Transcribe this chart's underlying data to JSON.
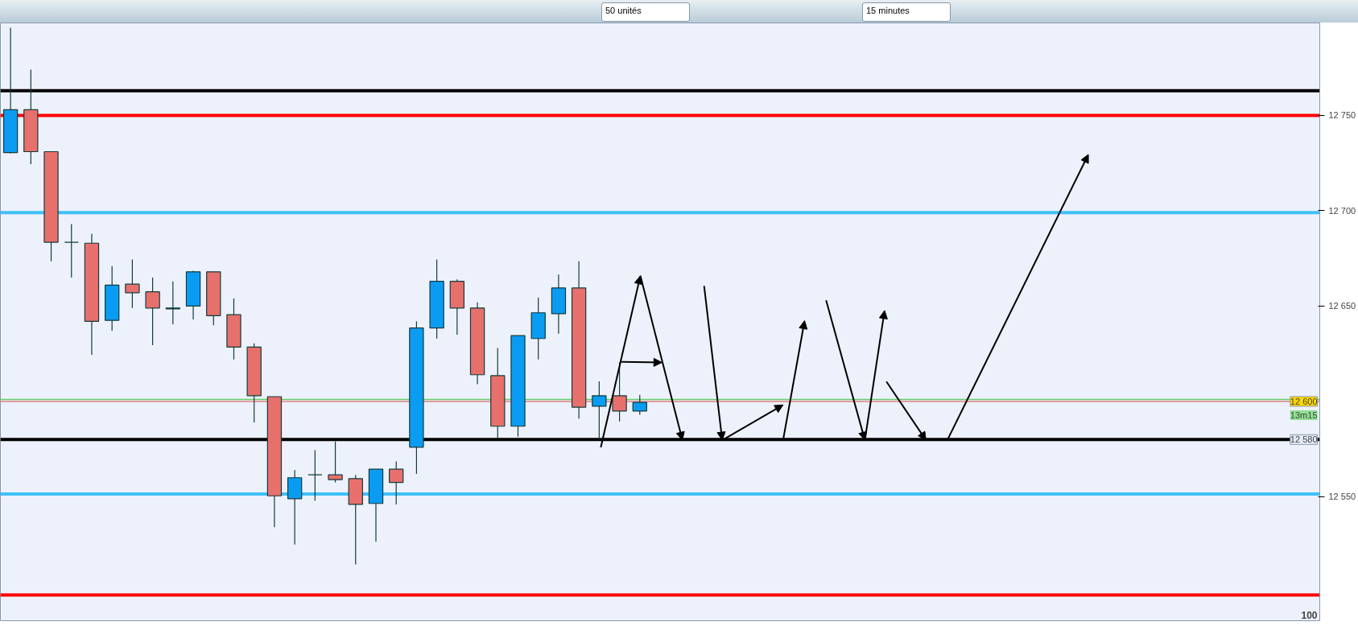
{
  "chart_data": {
    "type": "candlestick",
    "categories": [
      null,
      null,
      null,
      null,
      null,
      null,
      null,
      null,
      null,
      null,
      null,
      null,
      null,
      null,
      null,
      null,
      null,
      null,
      null,
      null,
      null,
      null,
      null,
      null,
      null,
      null,
      null,
      null,
      null,
      null,
      null,
      null,
      null,
      null,
      null,
      null,
      null,
      null,
      null,
      null,
      null,
      null,
      null,
      null,
      null,
      null,
      null,
      null,
      null,
      null,
      null,
      null,
      null,
      null,
      null,
      null,
      null,
      null,
      null,
      null,
      null,
      null,
      null,
      null,
      null
    ],
    "ohlc": [
      [
        12730.5,
        12796,
        12730,
        12753
      ],
      [
        12753,
        12774,
        12724.5,
        12731
      ],
      [
        12731,
        12731,
        12673.5,
        12683.5
      ],
      [
        12683.5,
        12693,
        12665,
        12683.5
      ],
      [
        12683,
        12688,
        12624.5,
        12642
      ],
      [
        12642.5,
        12671,
        12637,
        12661
      ],
      [
        12661.5,
        12674.5,
        12649,
        12657
      ],
      [
        12657.5,
        12665,
        12629.5,
        12649
      ],
      [
        12648.5,
        12663,
        12640.5,
        12649
      ],
      [
        12650,
        12668.5,
        12643,
        12668
      ],
      [
        12668,
        12668,
        12640,
        12645
      ],
      [
        12645.5,
        12654,
        12622,
        12628.5
      ],
      [
        12628.5,
        12630.5,
        12589,
        12603
      ],
      [
        12602.5,
        12602.5,
        12534,
        12550.5
      ],
      [
        12549,
        12564,
        12525,
        12560
      ],
      [
        12561.5,
        12574.5,
        12548,
        12561.5
      ],
      [
        12561.5,
        12579,
        12557.5,
        12559
      ],
      [
        12559.5,
        12561.5,
        12514.5,
        12546
      ],
      [
        12546.5,
        12564.5,
        12526.5,
        12564.5
      ],
      [
        12564.5,
        12568.5,
        12546,
        12557.5
      ],
      [
        12576,
        12642,
        12562,
        12638.5
      ],
      [
        12638.5,
        12674.5,
        12633,
        12663
      ],
      [
        12663,
        12664,
        12635,
        12649
      ],
      [
        12649,
        12652,
        12609,
        12614
      ],
      [
        12613.5,
        12628,
        12580.5,
        12587
      ],
      [
        12587,
        12634.5,
        12581.5,
        12634.5
      ],
      [
        12633,
        12654.5,
        12622,
        12646.5
      ],
      [
        12646,
        12666.5,
        12635.5,
        12659.5
      ],
      [
        12659.5,
        12673.5,
        12591,
        12597
      ],
      [
        12597.5,
        12610.5,
        12580,
        12603
      ],
      [
        12603,
        12620.5,
        12589.5,
        12595
      ],
      [
        12595,
        12603.5,
        12593,
        12599.5
      ],
      null,
      null,
      null,
      null,
      null,
      null,
      null,
      null,
      null,
      null,
      null,
      null,
      null,
      null,
      null,
      null,
      null,
      null,
      null,
      null,
      null,
      null,
      null,
      null,
      null,
      null,
      null,
      null,
      null,
      null,
      null,
      null,
      null
    ],
    "colors": [
      "#0a9cf2",
      "#e8706c",
      "#e8706c",
      "#123c3c",
      "#e8706c",
      "#0a9cf2",
      "#e8706c",
      "#e8706c",
      "#0a9cf2",
      "#0a9cf2",
      "#e8706c",
      "#e8706c",
      "#e8706c",
      "#e8706c",
      "#0a9cf2",
      "#123c3c",
      "#e8706c",
      "#e8706c",
      "#0a9cf2",
      "#e8706c",
      "#0a9cf2",
      "#0a9cf2",
      "#e8706c",
      "#e8706c",
      "#e8706c",
      "#0a9cf2",
      "#0a9cf2",
      "#0a9cf2",
      "#e8706c",
      "#0a9cf2",
      "#e8706c",
      "#0a9cf2",
      null,
      null,
      null,
      null,
      null,
      null,
      null,
      null,
      null,
      null,
      null,
      null,
      null,
      null,
      null,
      null,
      null,
      null,
      null,
      null,
      null,
      null,
      null,
      null,
      null,
      null,
      null,
      null,
      null,
      null,
      null,
      null,
      null
    ],
    "ylim": [
      12485,
      12798.5
    ],
    "yticks": [
      {
        "value": 12550,
        "label": "12 550"
      },
      {
        "value": 12650,
        "label": "12 650"
      },
      {
        "value": 12700,
        "label": "12 700"
      },
      {
        "value": 12750,
        "label": "12 750"
      }
    ],
    "tick_labels": "y",
    "grid": false,
    "ref_lines": [
      {
        "axis": "y",
        "value": 12763,
        "color": "#000000"
      },
      {
        "axis": "y",
        "value": 12750,
        "color": "#ff0000"
      },
      {
        "axis": "y",
        "value": 12699,
        "color": "#3ec0f8"
      },
      {
        "axis": "y",
        "value": 12601,
        "color": "#66cc66"
      },
      {
        "axis": "y",
        "value": 12600,
        "color": "#e08080",
        "label": "12 600"
      },
      {
        "axis": "y",
        "value": 12580,
        "color": "#000000",
        "label": "12 580"
      },
      {
        "axis": "y",
        "value": 12551.5,
        "color": "#3ec0f8"
      },
      {
        "axis": "y",
        "value": 12498.5,
        "color": "#ff0000"
      }
    ],
    "annotations": [
      "50 unités",
      "15 minutes",
      "13m15",
      "100"
    ]
  }
}
